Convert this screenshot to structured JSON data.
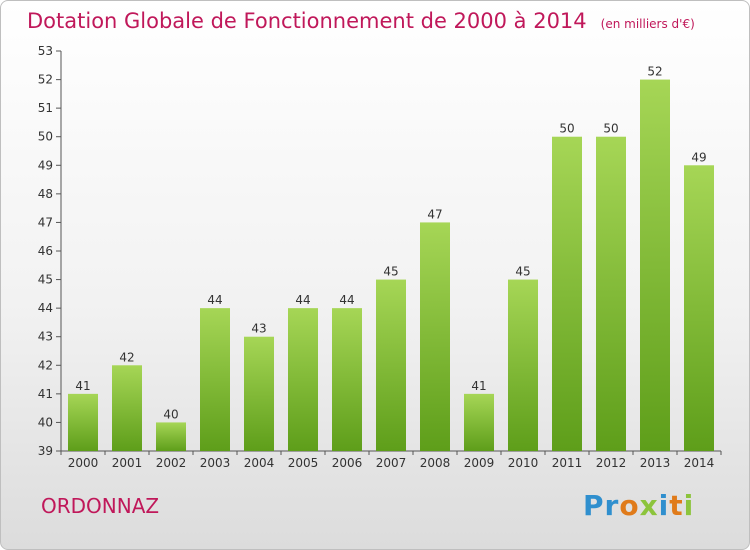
{
  "header": {
    "title": "Dotation Globale de Fonctionnement de 2000 à 2014",
    "unit": "(en milliers d'€)"
  },
  "footer": {
    "commune": "ORDONNAZ",
    "logo_text": "Proxiti"
  },
  "colors": {
    "title": "#c0185a",
    "bar_top": "#a6d656",
    "bar_bottom": "#5e9e1a"
  },
  "chart_data": {
    "type": "bar",
    "title": "Dotation Globale de Fonctionnement de 2000 à 2014",
    "subtitle": "(en milliers d'€)",
    "xlabel": "",
    "ylabel": "",
    "ylim": [
      39,
      53
    ],
    "yticks": [
      39,
      40,
      41,
      42,
      43,
      44,
      45,
      46,
      47,
      48,
      49,
      50,
      51,
      52,
      53
    ],
    "grid": false,
    "categories": [
      "2000",
      "2001",
      "2002",
      "2003",
      "2004",
      "2005",
      "2006",
      "2007",
      "2008",
      "2009",
      "2010",
      "2011",
      "2012",
      "2013",
      "2014"
    ],
    "values": [
      41,
      42,
      40,
      44,
      43,
      44,
      44,
      45,
      47,
      41,
      45,
      50,
      50,
      52,
      49
    ]
  }
}
